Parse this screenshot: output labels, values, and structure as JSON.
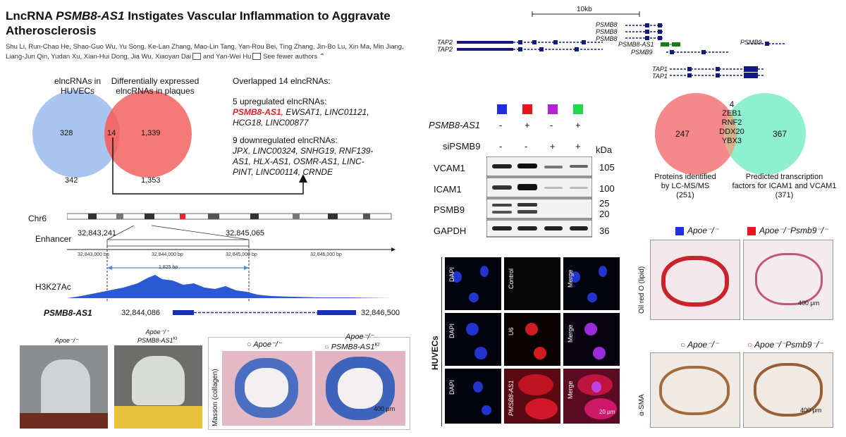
{
  "title_pre": "LncRNA ",
  "title_gene": "PSMB8-AS1",
  "title_post": " Instigates Vascular Inflammation to Aggravate Atherosclerosis",
  "authors_line1": "Shu Li, Run-Chao He, Shao-Guo Wu, Yu Song, Ke-Lan Zhang, Mao-Lin Tang, Yan-Rou Bei, Ting Zhang, Jin-Bo Lu, Xin Ma, Min Jiang,",
  "authors_line2": "Liang-Jun Qin, Yudan Xu, Xian-Hui Dong, Jia Wu, Xiaoyan Dai",
  "authors_and": "and Yan-Wei Hu",
  "see_fewer": "See fewer authors",
  "venn1": {
    "left_label_1": "elncRNAs in",
    "left_label_2": "HUVECs",
    "right_label_1": "Differentially expressed",
    "right_label_2": "elncRNAs in plaques",
    "left_only": "328",
    "overlap": "14",
    "right_only": "1,339",
    "left_total": "342",
    "right_total": "1,353",
    "colors": {
      "left": "#a9c4ef",
      "right": "#f47a7a"
    }
  },
  "overlap_panel": {
    "heading": "Overlapped 14 elncRNAs:",
    "up_heading": "5 upregulated elncRNAs:",
    "up_first": "PSMB8-AS1",
    "up_rest_1": ", EWSAT1, LINC01121,",
    "up_rest_2": "HCG18, LINC00877",
    "down_heading": "9 downregulated elncRNAs:",
    "down_1": "JPX, LINC00324, SNHG19, RNF139-",
    "down_2": "AS1, HLX-AS1, OSMR-AS1, LINC-",
    "down_3": "PINT, LINC00114, CRNDE"
  },
  "genome": {
    "chr": "Chr6",
    "enhancer": "Enhancer",
    "enh_start": "32,843,241",
    "enh_end": "32,845,065",
    "tick1": "32,843,000 bp",
    "tick2": "32,844,000 bp",
    "tick3": "32,845,000 bp",
    "tick4": "32,846,000 bp",
    "span": "1,825 bp",
    "track": "H3K27Ac",
    "gene": "PSMB8-AS1",
    "gene_start": "32,844,086",
    "gene_end": "32,846,500"
  },
  "loci": {
    "scale": "10kb",
    "tap2a": "TAP2",
    "tap2b": "TAP2",
    "psmb8a": "PSMB8",
    "psmb8b": "PSMB8",
    "psmb8c": "PSMB8",
    "psmb8as1": "PSMB8-AS1",
    "psmb9a": "PSMB9",
    "psmb9b": "PSMB9",
    "tap1a": "TAP1",
    "tap1b": "TAP1"
  },
  "western": {
    "row1_label": "PSMB8-AS1",
    "row1_vals": [
      "-",
      "+",
      "-",
      "+"
    ],
    "row2_label": "siPSMB9",
    "row2_vals": [
      "-",
      "-",
      "+",
      "+"
    ],
    "kda": "kDa",
    "lane_colors": [
      "#1f2fe0",
      "#e8141e",
      "#b420d8",
      "#22d84a"
    ],
    "bands": [
      {
        "name": "VCAM1",
        "kda": "105"
      },
      {
        "name": "ICAM1",
        "kda": "100"
      },
      {
        "name": "PSMB9",
        "kda": "25",
        "kda2": "20"
      },
      {
        "name": "GAPDH",
        "kda": "36"
      }
    ]
  },
  "venn2": {
    "left": "247",
    "overlap_n": "4",
    "genes": [
      "ZEB1",
      "RNF2",
      "DDX20",
      "YBX3"
    ],
    "right": "367",
    "left_caption_1": "Proteins identified",
    "left_caption_2": "by LC-MS/MS",
    "left_caption_3": "(251)",
    "right_caption_1": "Predicted transcription",
    "right_caption_2": "factors for ICAM1 and VCAM1",
    "right_caption_3": "(371)",
    "colors": {
      "left": "#f4888a",
      "right": "#8ff0cf"
    }
  },
  "photos": {
    "left_label": "Apoe⁻/⁻",
    "right_label_1": "Apoe⁻/⁻",
    "right_label_2": "PSMB8-AS1",
    "right_label_sup": "KI"
  },
  "masson": {
    "legend_1": "Apoe⁻/⁻",
    "legend_2_top": "Apoe⁻/⁻",
    "legend_2": "PSMB8-AS1",
    "legend_2_sup": "KI",
    "axis": "Masson (collagen)",
    "scale": "400 μm"
  },
  "fish": {
    "side": "HUVECs",
    "r1": [
      "DAPI",
      "Control",
      "Merge"
    ],
    "r2": [
      "DAPI",
      "U6",
      "Merge"
    ],
    "r3": [
      "DAPI",
      "PMSB8-AS1",
      "Merge"
    ],
    "scale": "20 μm"
  },
  "oilred": {
    "legend_1": "Apoe⁻/⁻",
    "legend_2": "Apoe⁻/⁻Psmb9⁻/⁻",
    "axis": "Oil red O (lipid)",
    "scale": "400 μm"
  },
  "sma": {
    "legend_1": "Apoe⁻/⁻",
    "legend_2": "Apoe⁻/⁻Psmb9⁻/⁻",
    "axis": "α-SMA",
    "scale": "400 μm"
  }
}
